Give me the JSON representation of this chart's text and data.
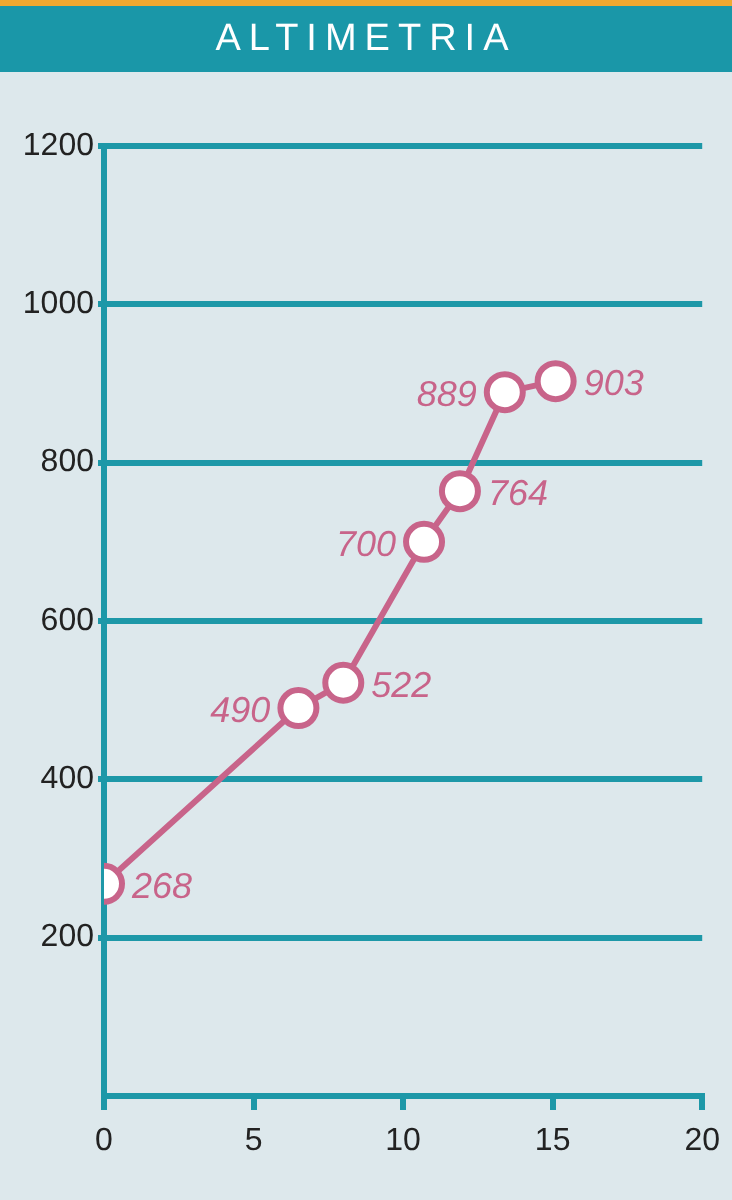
{
  "chart_data": {
    "type": "line",
    "title": "ALTIMETRIA",
    "x": [
      0,
      6.5,
      8.0,
      10.7,
      11.9,
      13.4,
      15.1
    ],
    "series": [
      {
        "color": "#c8648a",
        "values": [
          268,
          490,
          522,
          700,
          764,
          889,
          903
        ]
      }
    ],
    "xlim": [
      0,
      20
    ],
    "xticks": [
      0,
      5,
      10,
      15,
      20
    ],
    "ylim": [
      0,
      1200
    ],
    "yticks": [
      200,
      400,
      600,
      800,
      1000,
      1200
    ],
    "grid": "y",
    "marker": "circle",
    "line_style": "solid",
    "data_labels": true
  }
}
